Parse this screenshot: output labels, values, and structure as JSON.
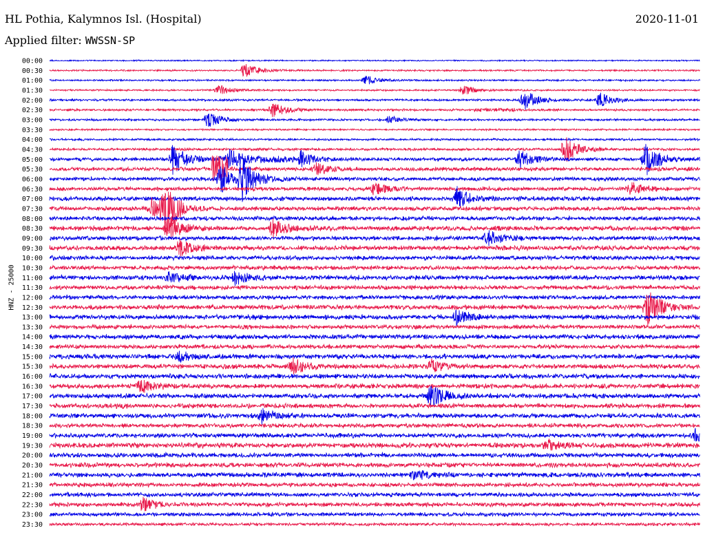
{
  "header": {
    "station": "HL Pothia, Kalymnos Isl. (Hospital)",
    "date": "2020-11-01",
    "filter_prefix": "Applied filter:",
    "filter_name": "WWSSN-SP"
  },
  "channel_label": "HNZ - 25000",
  "chart_data": {
    "type": "line",
    "title": "HL Pothia, Kalymnos Isl. (Hospital)",
    "subtitle": "Applied filter: WWSSN-SP",
    "date": "2020-11-01",
    "ylabel": "HNZ - 25000",
    "trace_minutes": 30,
    "trace_colors": [
      "#0000e6",
      "#e8194a"
    ],
    "row_labels": [
      "00:00",
      "00:30",
      "01:00",
      "01:30",
      "02:00",
      "02:30",
      "03:00",
      "03:30",
      "04:00",
      "04:30",
      "05:00",
      "05:30",
      "06:00",
      "06:30",
      "07:00",
      "07:30",
      "08:00",
      "08:30",
      "09:00",
      "09:30",
      "10:00",
      "10:30",
      "11:00",
      "11:30",
      "12:00",
      "12:30",
      "13:00",
      "13:30",
      "14:00",
      "14:30",
      "15:00",
      "15:30",
      "16:00",
      "16:30",
      "17:00",
      "17:30",
      "18:00",
      "18:30",
      "19:00",
      "19:30",
      "20:00",
      "20:30",
      "21:00",
      "21:30",
      "22:00",
      "22:30",
      "23:00",
      "23:30"
    ],
    "noise_level": [
      0.15,
      0.2,
      0.2,
      0.2,
      0.25,
      0.25,
      0.25,
      0.2,
      0.25,
      0.3,
      0.4,
      0.45,
      0.45,
      0.45,
      0.5,
      0.5,
      0.5,
      0.55,
      0.5,
      0.55,
      0.5,
      0.5,
      0.55,
      0.5,
      0.5,
      0.55,
      0.55,
      0.5,
      0.55,
      0.5,
      0.55,
      0.55,
      0.55,
      0.55,
      0.55,
      0.55,
      0.55,
      0.5,
      0.55,
      0.6,
      0.55,
      0.55,
      0.55,
      0.5,
      0.5,
      0.5,
      0.45,
      0.35
    ],
    "events": [
      {
        "row": 1,
        "minute": 9.0,
        "amplitude": 1.5
      },
      {
        "row": 2,
        "minute": 14.6,
        "amplitude": 0.9
      },
      {
        "row": 3,
        "minute": 7.8,
        "amplitude": 1.0
      },
      {
        "row": 3,
        "minute": 19.1,
        "amplitude": 1.0
      },
      {
        "row": 4,
        "minute": 21.9,
        "amplitude": 2.0
      },
      {
        "row": 4,
        "minute": 25.4,
        "amplitude": 1.5
      },
      {
        "row": 5,
        "minute": 10.3,
        "amplitude": 1.6
      },
      {
        "row": 6,
        "minute": 7.3,
        "amplitude": 1.6
      },
      {
        "row": 6,
        "minute": 15.7,
        "amplitude": 0.8
      },
      {
        "row": 9,
        "minute": 23.8,
        "amplitude": 2.8
      },
      {
        "row": 10,
        "minute": 5.7,
        "amplitude": 3.2
      },
      {
        "row": 10,
        "minute": 8.3,
        "amplitude": 1.5
      },
      {
        "row": 10,
        "minute": 11.6,
        "amplitude": 1.6
      },
      {
        "row": 10,
        "minute": 21.7,
        "amplitude": 1.8
      },
      {
        "row": 10,
        "minute": 27.5,
        "amplitude": 3.6
      },
      {
        "row": 11,
        "minute": 12.3,
        "amplitude": 1.2
      },
      {
        "row": 12,
        "minute": 7.9,
        "amplitude": 3.0
      },
      {
        "row": 12,
        "minute": 8.9,
        "amplitude": 4.0
      },
      {
        "row": 13,
        "minute": 15.0,
        "amplitude": 1.2
      },
      {
        "row": 13,
        "minute": 26.8,
        "amplitude": 1.2
      },
      {
        "row": 14,
        "minute": 18.8,
        "amplitude": 2.2
      },
      {
        "row": 15,
        "minute": 5.3,
        "amplitude": 3.8
      },
      {
        "row": 15,
        "minute": 4.7,
        "amplitude": 2.2
      },
      {
        "row": 17,
        "minute": 10.3,
        "amplitude": 1.8
      },
      {
        "row": 17,
        "minute": 5.5,
        "amplitude": 2.4
      },
      {
        "row": 18,
        "minute": 20.2,
        "amplitude": 1.5
      },
      {
        "row": 19,
        "minute": 6.0,
        "amplitude": 1.6
      },
      {
        "row": 22,
        "minute": 8.6,
        "amplitude": 1.4
      },
      {
        "row": 22,
        "minute": 5.5,
        "amplitude": 1.0
      },
      {
        "row": 25,
        "minute": 27.6,
        "amplitude": 3.5
      },
      {
        "row": 26,
        "minute": 18.8,
        "amplitude": 1.4
      },
      {
        "row": 30,
        "minute": 6.0,
        "amplitude": 1.0
      },
      {
        "row": 31,
        "minute": 11.2,
        "amplitude": 1.5
      },
      {
        "row": 31,
        "minute": 17.6,
        "amplitude": 1.3
      },
      {
        "row": 33,
        "minute": 4.2,
        "amplitude": 1.3
      },
      {
        "row": 34,
        "minute": 17.6,
        "amplitude": 2.4
      },
      {
        "row": 36,
        "minute": 9.8,
        "amplitude": 1.4
      },
      {
        "row": 38,
        "minute": 29.8,
        "amplitude": 1.2
      },
      {
        "row": 39,
        "minute": 23.0,
        "amplitude": 1.0
      },
      {
        "row": 42,
        "minute": 16.8,
        "amplitude": 1.0
      },
      {
        "row": 45,
        "minute": 4.3,
        "amplitude": 1.1
      }
    ],
    "steps": [
      {
        "row": 10,
        "start_minute": 7.8,
        "end_minute": 11.3,
        "amplitude": 0.35
      },
      {
        "row": 5,
        "start_minute": 19.6,
        "end_minute": 21.9,
        "amplitude": 0.15
      },
      {
        "row": 11,
        "start_minute": 7.5,
        "end_minute": 8.2,
        "amplitude": 2.6
      },
      {
        "row": 15,
        "start_minute": 5.3,
        "end_minute": 6.1,
        "amplitude": 0.8
      }
    ]
  }
}
